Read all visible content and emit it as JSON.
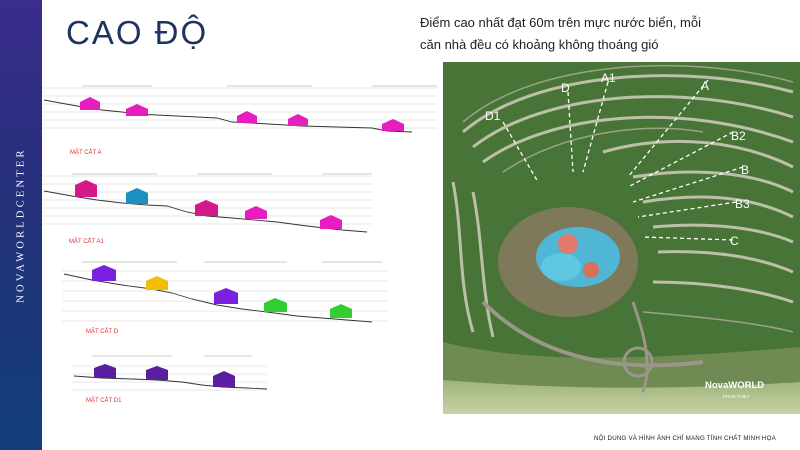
{
  "sidebar": {
    "brand": "NOVAWORLDCENTER"
  },
  "title": "CAO ĐỘ",
  "headline": {
    "line1": "Điểm cao nhất đạt 60m trên mực nước biển, mỗi",
    "line2": "căn nhà đều có khoảng không thoáng gió"
  },
  "sections": [
    {
      "label": "MẶT CẮT A",
      "colors": [
        "#e61ebd",
        "#e61ebd",
        "#e61ebd",
        "#e61ebd",
        "#e61ebd"
      ]
    },
    {
      "label": "MẶT CẮT A1",
      "colors": [
        "#d6198a",
        "#1a8fc0",
        "#d6198a",
        "#e61ebd",
        "#e61ebd"
      ]
    },
    {
      "label": "MẶT CẮT D",
      "colors": [
        "#7a20e0",
        "#f0c000",
        "#7a20e0",
        "#33cc33",
        "#33cc33"
      ]
    },
    {
      "label": "MẶT CẮT D1",
      "colors": [
        "#5a1fa0",
        "#5a1fa0",
        "#5a1fa0"
      ]
    }
  ],
  "map": {
    "lines": [
      "D1",
      "D",
      "A1",
      "A",
      "B2",
      "B",
      "B3",
      "C"
    ],
    "logo": "NovaWORLD",
    "logo_sub": "PHAN THIET"
  },
  "footer": {
    "note": "NỘI DUNG VÀ HÌNH ẢNH CHỈ MANG TÍNH CHẤT MINH HỌA"
  }
}
